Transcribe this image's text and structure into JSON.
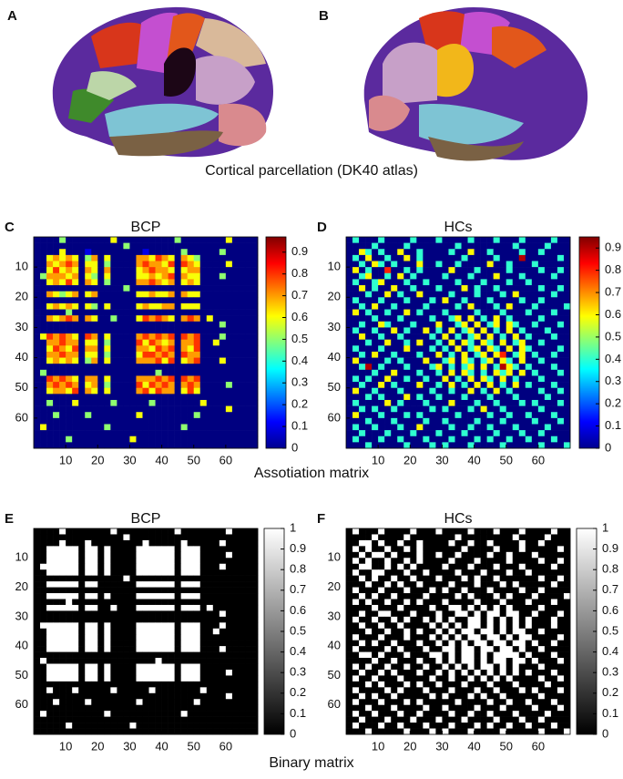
{
  "figure": {
    "brain_panels": [
      "A",
      "B"
    ],
    "brain_caption": "Cortical parcellation (DK40 atlas)",
    "association_caption": "Assotiation matrix",
    "binary_caption": "Binary matrix"
  },
  "chart_data": [
    {
      "type": "heatmap",
      "panel": "C",
      "title": "BCP",
      "colormap": "jet",
      "xlim": [
        0,
        70
      ],
      "ylim": [
        0,
        70
      ],
      "xticks": [
        10,
        20,
        30,
        40,
        50,
        60
      ],
      "yticks": [
        10,
        20,
        30,
        40,
        50,
        60
      ],
      "colorbar": {
        "lim": [
          0,
          0.97
        ],
        "ticks": [
          0,
          0.1,
          0.2,
          0.3,
          0.4,
          0.5,
          0.6,
          0.7,
          0.8,
          0.9
        ]
      },
      "rows": [
        "00005000000060000000005000000060000",
        "00000000000000500000000000000000000",
        "00006000100000000100000500000500000",
        "00676760570600007768760765000000000",
        "00767870660500007877680876000060000",
        "00686760760700006787760677000000000",
        "05777670650600006676780766000500000",
        "00676860760500007787670676000000000",
        "00000000000000500000000000000000000",
        "00765670670000006676670766000000000",
        "00000000000000000000000000000000000",
        "00676760650600006766770666000000000",
        "00000500000000000000000000000000000",
        "00767870760050006878760787060000000",
        "00000000000000000000000000000500000",
        "00000000000000000000000000000000000",
        "06878760870600007878780878000500000",
        "00778770660500008687670778006000000",
        "00687680770600007768780768000000000",
        "00778770660500006887870877000000000",
        "00676760570600007778680678000600000",
        "00000000000000000000000000000000000",
        "05000000000000000005000000000000000",
        "00878760770600007778780878000000000",
        "00787870670500008687870787000050000",
        "00677680760600007868770686000000000",
        "00000000000000000000000000000000000",
        "00500060000050000050000000600000000",
        "00000000000000000000000000000060000",
        "00050000500000006000000005000000000",
        "00000000000000000000000000000000000",
        "06000000000500000000000500000000000",
        "00000000000000000000000000000000000",
        "00000500000000060000000000000000000",
        "00000000000000000000000000000000000"
      ]
    },
    {
      "type": "heatmap",
      "panel": "D",
      "title": "HCs",
      "colormap": "jet",
      "xlim": [
        0,
        70
      ],
      "ylim": [
        0,
        70
      ],
      "xticks": [
        10,
        20,
        30,
        40,
        50,
        60
      ],
      "yticks": [
        10,
        20,
        30,
        40,
        50,
        60
      ],
      "colorbar": {
        "lim": [
          0,
          0.95
        ],
        "ticks": [
          0,
          0.1,
          0.2,
          0.3,
          0.4,
          0.5,
          0.6,
          0.7,
          0.8,
          0.9
        ]
      },
      "rows": [
        "04000400004000400004000400040000400",
        "00004000040000000400000000400004000",
        "00640400600400004006004000040040000",
        "04060040060400000040000400090000040",
        "00406404000600400400006004000400000",
        "06040080040400006000400004000040040",
        "00460040604000040004000600040000400",
        "04004600040040000400040004004000000",
        "00604006004000400060400400000040040",
        "00040060400600004000400040600000400",
        "04000400040004060040004000040040000",
        "00406004000040000406000406000400004",
        "06040040060400040000400040004000400",
        "00004000400004004606040604000040000",
        "00400640004000600460604606400400040",
        "04004006040060406046060406040004000",
        "00600400400004060404606040604000400",
        "00040060040600406064064060460040000",
        "04000400060004040604606406064000040",
        "00406004000400604060460680460400400",
        "06000040400060046064046064060040000",
        "00490400040004604046060496404000400",
        "00004006000400406064040646060400040",
        "04040060040040060406064060400040000",
        "00400604000600406040606040604000400",
        "06004000400004004006040604000040040",
        "00040400060400400040004000400004000",
        "04000060400040006000400400040400040",
        "00404004000004040004060040000040000",
        "06000400040400000400004004004000400",
        "00040004000040040000400040000400040",
        "04004000400600004004004000400004000",
        "00400040004000400040000400040040000",
        "04000400400040004000404004004000400",
        "00040000040004040004000040000040004"
      ]
    },
    {
      "type": "heatmap",
      "panel": "E",
      "title": "BCP",
      "colormap": "gray",
      "xlim": [
        0,
        70
      ],
      "ylim": [
        0,
        70
      ],
      "xticks": [
        10,
        20,
        30,
        40,
        50,
        60
      ],
      "yticks": [
        10,
        20,
        30,
        40,
        50,
        60
      ],
      "colorbar": {
        "lim": [
          0,
          1
        ],
        "ticks": [
          0,
          0.1,
          0.2,
          0.3,
          0.4,
          0.5,
          0.6,
          0.7,
          0.8,
          0.9,
          1
        ]
      },
      "rows": [
        "00001000000010000000001000000010000",
        "00000000000000100000000000000000000",
        "00001000100000000100000100000100000",
        "00111110110100001111110111000000000",
        "00111110110100001111110111000010000",
        "00111110110100001111110111000000000",
        "01111110110100001111110111000100000",
        "00111110110100001111110111000000000",
        "00000000000000100000000000000000000",
        "00111110110000001111110111000000000",
        "00000000000000000000000000000000000",
        "00111110110100001111110111000000000",
        "00000100000000000000000000000000000",
        "00111110110010001111110111010000000",
        "00000000000000000000000000000100000",
        "00000000000000000000000000000000000",
        "01111110110100001111110111000100000",
        "00111110110100001111110111001000000",
        "00111110110100001111110111000000000",
        "00111110110100001111110111000000000",
        "00111110110100001111110111000100000",
        "00000000000000000000000000000000000",
        "01000000000000000001000000000000000",
        "00111110110100001111110111000000000",
        "00111110110100001111110111000010000",
        "00111110110100001111110111000000000",
        "00000000000000000000000000000000000",
        "00100010000010000010000000100000000",
        "00000000000000000000000000000010000",
        "00010000100000001000000001000000000",
        "00000000000000000000000000000000000",
        "01000000000100000000000100000000000",
        "00000000000000000000000000000000000",
        "00000100000000010000000000000000000",
        "00000000000000000000000000000000000"
      ]
    },
    {
      "type": "heatmap",
      "panel": "F",
      "title": "HCs",
      "colormap": "gray",
      "xlim": [
        0,
        70
      ],
      "ylim": [
        0,
        70
      ],
      "xticks": [
        10,
        20,
        30,
        40,
        50,
        60
      ],
      "yticks": [
        10,
        20,
        30,
        40,
        50,
        60
      ],
      "colorbar": {
        "lim": [
          0,
          1
        ],
        "ticks": [
          0,
          0.1,
          0.2,
          0.3,
          0.4,
          0.5,
          0.6,
          0.7,
          0.8,
          0.9,
          1
        ]
      },
      "rows": [
        "01000100001000100001000100010000100",
        "00001000010000000100000000100001000",
        "00110100100100001001001000010010000",
        "01010010010100000010000100010000010",
        "00101101000100100100001001000100000",
        "01010010010100001000100001000010010",
        "00110010101000010001000100010000100",
        "01001100010010000100010001001000000",
        "00101001001000100010100100000010010",
        "00010010100100001000100010100000100",
        "01000100010001010010001000010010000",
        "00101001000010000101000101000100001",
        "01010010010100010000100010001000100",
        "00001000100001001101010101000010000",
        "00100110001000100110101101100100010",
        "01001001010010101001101010101000100",
        "00100100100001010101101010101000100",
        "00010010010100101011011010110010000",
        "01000100010001010101101101011000010",
        "00101001000100101010110110110100100",
        "01000010100010011011011011010010000",
        "00110100010001101011010111101000100",
        "00001001000100101011010110110100010",
        "01010010010010010101011010100010000",
        "00100101000100101010101010101000100",
        "01001000100001001001010101000010010",
        "00010100010100100010001000100001000",
        "01000010100010001000100100010100010",
        "00101001000001010001010010000010000",
        "01000100010100000100001001001000100",
        "00010001000010010000100010000100010",
        "01001000100100001001001000100001000",
        "00100010001000100010000100010010000",
        "01000100100010001000101001001000100",
        "00010000010001010001000010000010001"
      ]
    }
  ]
}
